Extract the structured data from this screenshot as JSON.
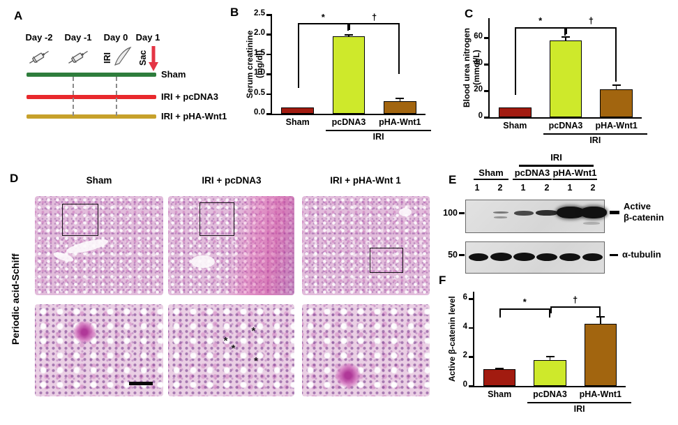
{
  "colors": {
    "sham_bar": "#A21B10",
    "pcdna3_bar": "#CEE92B",
    "pha_wnt1_bar": "#A2650F",
    "timeline_sham": "#2E7D3C",
    "timeline_pcdna3": "#E8282C",
    "timeline_pha_wnt1": "#C7A12B",
    "sac_arrow": "#E43545",
    "blot_background": "#DCDCDC"
  },
  "panel_a": {
    "letter": "A",
    "day_labels": [
      "Day -2",
      "Day -1",
      "Day 0",
      "Day 1"
    ],
    "iri_marker": "IRI",
    "sac_marker": "Sac",
    "icons": [
      "syringe-icon",
      "syringe-icon",
      "scalpel-icon",
      "red-down-arrow-icon"
    ],
    "rows": [
      {
        "label": "Sham"
      },
      {
        "label": "IRI + pcDNA3"
      },
      {
        "label": "IRI + pHA-Wnt1"
      }
    ]
  },
  "panel_letters": {
    "b": "B",
    "c": "C",
    "f": "F"
  },
  "panel_d": {
    "letter": "D",
    "stain_label": "Periodic acid-Schiff",
    "column_labels": [
      "Sham",
      "IRI + pcDNA3",
      "IRI + pHA-Wnt 1"
    ],
    "asterisk_symbol": "*"
  },
  "panel_e": {
    "letter": "E",
    "iri_label": "IRI",
    "group_labels": [
      "Sham",
      "pcDNA3",
      "pHA-Wnt1"
    ],
    "lane_numbers": [
      "1",
      "2",
      "1",
      "2",
      "1",
      "2"
    ],
    "mw_markers": [
      "100",
      "50"
    ],
    "target_label_lines": [
      "Active",
      "β-catenin"
    ],
    "loading_label": "α-tubulin"
  },
  "chart_data": [
    {
      "panel": "B",
      "type": "bar",
      "categories": [
        "Sham",
        "pcDNA3",
        "pHA-Wnt1"
      ],
      "values": [
        0.15,
        1.95,
        0.32
      ],
      "errors": [
        0,
        0.04,
        0.07
      ],
      "bar_colors": [
        "#A21B10",
        "#CEE92B",
        "#A2650F"
      ],
      "ylabel_lines": [
        "Serum creatinine",
        "(mg/dl)"
      ],
      "ylim": [
        0,
        2.5
      ],
      "yticks": [
        "0.0",
        "0.5",
        "1.0",
        "1.5",
        "2.0",
        "2.5"
      ],
      "grid": false,
      "group_label": "IRI",
      "group_span_start": 1,
      "sig": [
        {
          "a": 0,
          "b": 1,
          "symbol": "*",
          "y": 2.28,
          "a_end": 0.65,
          "b_end": 2.1
        },
        {
          "a": 1,
          "b": 2,
          "symbol": "†",
          "y": 2.28,
          "a_end": 2.12,
          "b_end": 1.0
        }
      ]
    },
    {
      "panel": "C",
      "type": "bar",
      "categories": [
        "Sham",
        "pcDNA3",
        "pHA-Wnt1"
      ],
      "values": [
        7.5,
        58,
        21
      ],
      "errors": [
        0,
        2.5,
        3.5
      ],
      "bar_colors": [
        "#A21B10",
        "#CEE92B",
        "#A2650F"
      ],
      "ylabel_lines": [
        "Blood urea nitrogen",
        "(mmol/L)"
      ],
      "ylim": [
        0,
        75
      ],
      "yticks": [
        "0",
        "20",
        "40",
        "60"
      ],
      "grid": false,
      "group_label": "IRI",
      "group_span_start": 1,
      "sig": [
        {
          "a": 0,
          "b": 1,
          "symbol": "*",
          "y": 68,
          "a_end": 17,
          "b_end": 62
        },
        {
          "a": 1,
          "b": 2,
          "symbol": "†",
          "y": 68,
          "a_end": 63,
          "b_end": 27
        }
      ]
    },
    {
      "panel": "F",
      "type": "bar",
      "categories": [
        "Sham",
        "pcDNA3",
        "pHA-Wnt1"
      ],
      "values": [
        1.15,
        1.8,
        4.3
      ],
      "errors": [
        0.05,
        0.2,
        0.45
      ],
      "bar_colors": [
        "#A21B10",
        "#CEE92B",
        "#A2650F"
      ],
      "ylabel_lines": [
        "Active β-catenin level"
      ],
      "ylim": [
        0,
        6.5
      ],
      "yticks": [
        "0",
        "2",
        "4",
        "6"
      ],
      "grid": false,
      "group_label": "IRI",
      "group_span_start": 1,
      "sig": [
        {
          "a": 0,
          "b": 1,
          "symbol": "*",
          "y": 5.35,
          "a_end": 4.7,
          "b_end": 4.72
        },
        {
          "a": 1,
          "b": 2,
          "symbol": "†",
          "y": 5.5,
          "a_end": 5.0,
          "b_end": 4.82
        }
      ]
    }
  ]
}
